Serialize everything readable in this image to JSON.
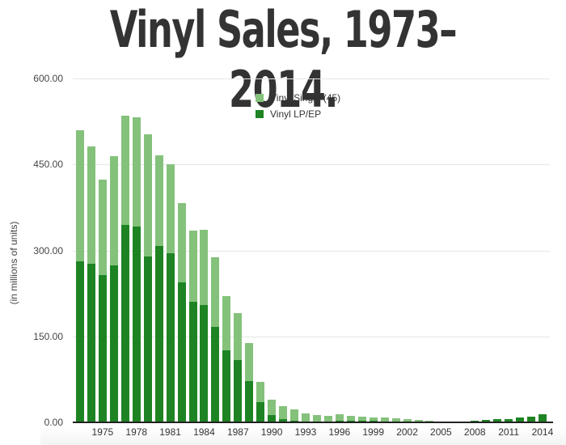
{
  "title": "Vinyl Sales, 1973–2014.",
  "colors": {
    "single": "#84c27b",
    "lp": "#1e8423",
    "axis": "#222222",
    "grid": "#e6e6e6",
    "title": "#333333"
  },
  "chart_data": {
    "type": "bar",
    "stacked": true,
    "title": "Vinyl Sales, 1973–2014.",
    "xlabel": "",
    "ylabel": "(in millions of units)",
    "ylim": [
      0,
      600
    ],
    "yticks": [
      "0.00",
      "150.00",
      "300.00",
      "450.00",
      "600.00"
    ],
    "xtick_labels": [
      "1975",
      "1978",
      "1981",
      "1984",
      "1987",
      "1990",
      "1993",
      "1996",
      "1999",
      "2002",
      "2005",
      "2008",
      "2011",
      "2014"
    ],
    "grid": true,
    "legend_position": "top-center",
    "categories": [
      1973,
      1974,
      1975,
      1976,
      1977,
      1978,
      1979,
      1980,
      1981,
      1982,
      1983,
      1984,
      1985,
      1986,
      1987,
      1988,
      1989,
      1990,
      1991,
      1992,
      1993,
      1994,
      1995,
      1996,
      1997,
      1998,
      1999,
      2000,
      2001,
      2002,
      2003,
      2004,
      2005,
      2006,
      2007,
      2008,
      2009,
      2010,
      2011,
      2012,
      2013,
      2014
    ],
    "series": [
      {
        "name": "Vinyl LP/EP",
        "color": "#1e8423",
        "values": [
          281,
          277,
          257,
          274,
          344,
          341,
          290,
          308,
          295,
          244,
          210,
          205,
          167,
          126,
          108,
          72,
          35,
          12,
          5,
          3,
          2,
          2,
          2,
          3,
          3,
          3,
          3,
          2,
          2,
          2,
          1,
          1,
          1,
          1,
          2,
          3,
          4,
          5,
          6,
          8,
          10,
          14
        ]
      },
      {
        "name": "Vinyl Single (45)",
        "color": "#84c27b",
        "values": [
          229,
          204,
          166,
          190,
          191,
          191,
          212,
          158,
          156,
          138,
          124,
          131,
          121,
          94,
          82,
          67,
          36,
          28,
          23,
          19,
          14,
          11,
          9,
          11,
          8,
          7,
          6,
          6,
          5,
          4,
          3,
          2,
          1,
          0,
          0,
          0,
          0,
          0,
          0,
          0,
          0,
          0
        ]
      }
    ]
  },
  "legend": [
    {
      "label": "Vinyl Single (45)",
      "color": "#84c27b"
    },
    {
      "label": "Vinyl LP/EP",
      "color": "#1e8423"
    }
  ]
}
